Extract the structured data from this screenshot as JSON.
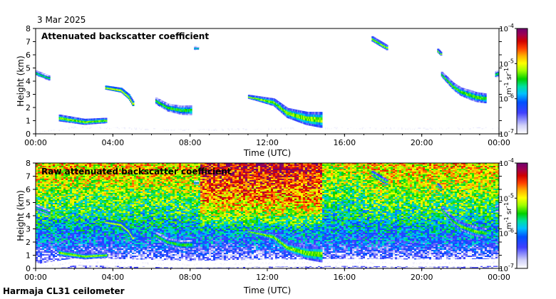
{
  "date_label": "3 Mar 2025",
  "caption": "Harmaja CL31 ceilometer",
  "chart_data": [
    {
      "type": "heatmap",
      "title": "Attenuated backscatter coefficient",
      "xlabel": "Time (UTC)",
      "ylabel": "Height (km)",
      "xticks": [
        "00:00",
        "04:00",
        "08:00",
        "12:00",
        "16:00",
        "20:00",
        "00:00"
      ],
      "xlim_hours": [
        0,
        24
      ],
      "ylim": [
        0,
        8
      ],
      "yticks": [
        0,
        1,
        2,
        3,
        4,
        5,
        6,
        7,
        8
      ],
      "colorbar": {
        "ticks": [
          -7,
          -6,
          -5,
          -4
        ],
        "tick_labels": [
          "10",
          "10",
          "10",
          "10"
        ],
        "tick_exponents": [
          "-7",
          "-6",
          "-5",
          "-4"
        ],
        "unit": "m",
        "unit_exp1": "-1",
        "unit_mid": " sr",
        "unit_exp2": "-1",
        "scale": "log10",
        "colors": [
          "#ffffff",
          "#e0e0f8",
          "#5a5aff",
          "#0000c0",
          "#00a0ff",
          "#00e0c0",
          "#00e000",
          "#a0ff00",
          "#ffff00",
          "#ffb000",
          "#ff5000",
          "#e00000",
          "#b00040",
          "#800080"
        ]
      },
      "layers": [
        {
          "name": "surface-aerosol",
          "t": [
            [
              0,
              0.05
            ],
            [
              2,
              0.5
            ],
            [
              4,
              0.45
            ],
            [
              8,
              0.3
            ],
            [
              12,
              0.4
            ],
            [
              16,
              0.45
            ],
            [
              20,
              0.4
            ],
            [
              24,
              0.45
            ]
          ],
          "thickness": [
            [
              0,
              0.4
            ],
            [
              24,
              0.4
            ]
          ],
          "logval": -6.8
        },
        {
          "name": "cloud-00-01h",
          "t": [
            [
              0,
              4.6
            ],
            [
              0.7,
              4.2
            ]
          ],
          "thickness": [
            [
              0,
              0.3
            ],
            [
              0.7,
              0.3
            ]
          ],
          "logval": -5.3
        },
        {
          "name": "cloud-02h",
          "t": [
            [
              1.2,
              1.2
            ],
            [
              2.5,
              0.9
            ],
            [
              3.6,
              1.0
            ]
          ],
          "thickness": [
            [
              1.2,
              0.4
            ],
            [
              3.6,
              0.3
            ]
          ],
          "logval": -5.0
        },
        {
          "name": "cloud-04-05h",
          "t": [
            [
              3.6,
              3.5
            ],
            [
              4.4,
              3.3
            ],
            [
              4.8,
              2.8
            ],
            [
              5.0,
              2.3
            ]
          ],
          "thickness": [
            [
              3.6,
              0.2
            ],
            [
              5.0,
              0.3
            ]
          ],
          "logval": -4.8
        },
        {
          "name": "cloud-06-07h",
          "t": [
            [
              6.2,
              2.5
            ],
            [
              6.8,
              2.0
            ],
            [
              7.5,
              1.8
            ],
            [
              8.0,
              1.8
            ]
          ],
          "thickness": [
            [
              6.2,
              0.4
            ],
            [
              8.0,
              0.6
            ]
          ],
          "logval": -5.2
        },
        {
          "name": "cloud-12-15h",
          "t": [
            [
              11.0,
              2.8
            ],
            [
              12.3,
              2.4
            ],
            [
              13.0,
              1.6
            ],
            [
              14.0,
              1.2
            ],
            [
              14.8,
              1.1
            ]
          ],
          "thickness": [
            [
              11.0,
              0.2
            ],
            [
              12.5,
              0.5
            ],
            [
              14.8,
              1.0
            ]
          ],
          "logval": -5.0
        },
        {
          "name": "cloud-21-23h",
          "t": [
            [
              21.0,
              4.5
            ],
            [
              21.6,
              3.6
            ],
            [
              22.0,
              3.2
            ],
            [
              22.8,
              2.8
            ],
            [
              23.3,
              2.7
            ]
          ],
          "thickness": [
            [
              21.0,
              0.3
            ],
            [
              22.5,
              0.6
            ],
            [
              23.3,
              0.6
            ]
          ],
          "logval": -5.1
        },
        {
          "name": "cloud-24h",
          "t": [
            [
              23.8,
              4.5
            ],
            [
              24,
              4.6
            ]
          ],
          "thickness": [
            [
              23.8,
              0.4
            ],
            [
              24,
              0.4
            ]
          ],
          "logval": -5.3
        },
        {
          "name": "aloft-07h",
          "t": [
            [
              8.2,
              6.5
            ],
            [
              8.4,
              6.5
            ]
          ],
          "thickness": [
            [
              8.2,
              0.2
            ],
            [
              8.4,
              0.2
            ]
          ],
          "logval": -5.4
        },
        {
          "name": "aloft-18h",
          "t": [
            [
              17.4,
              7.2
            ],
            [
              18.2,
              6.5
            ]
          ],
          "thickness": [
            [
              17.4,
              0.3
            ],
            [
              18.2,
              0.3
            ]
          ],
          "logval": -5.0
        },
        {
          "name": "aloft-20h",
          "t": [
            [
              20.8,
              6.3
            ],
            [
              21.0,
              6.0
            ]
          ],
          "thickness": [
            [
              20.8,
              0.2
            ],
            [
              21.0,
              0.2
            ]
          ],
          "logval": -5.0
        }
      ]
    },
    {
      "type": "heatmap",
      "title": "Raw attenuated backscatter coefficient",
      "xlabel": "Time (UTC)",
      "ylabel": "Height (km)",
      "xticks": [
        "00:00",
        "04:00",
        "08:00",
        "12:00",
        "16:00",
        "20:00",
        "00:00"
      ],
      "xlim_hours": [
        0,
        24
      ],
      "ylim": [
        0,
        8
      ],
      "yticks": [
        0,
        1,
        2,
        3,
        4,
        5,
        6,
        7,
        8
      ],
      "colorbar": {
        "ticks": [
          -7,
          -6,
          -5,
          -4
        ],
        "tick_labels": [
          "10",
          "10",
          "10",
          "10"
        ],
        "tick_exponents": [
          "-7",
          "-6",
          "-5",
          "-4"
        ],
        "unit": "m",
        "unit_exp1": "-1",
        "unit_mid": " sr",
        "unit_exp2": "-1",
        "scale": "log10"
      },
      "noise_gradient_note": "noise increases with height; red aloft 09-14h",
      "noise_profile": [
        {
          "h": 0,
          "logval": -6.9
        },
        {
          "h": 1,
          "logval": -6.6
        },
        {
          "h": 2,
          "logval": -6.1
        },
        {
          "h": 3,
          "logval": -5.9
        },
        {
          "h": 4,
          "logval": -5.6
        },
        {
          "h": 5,
          "logval": -5.4
        },
        {
          "h": 6,
          "logval": -5.2
        },
        {
          "h": 7,
          "logval": -5.0
        },
        {
          "h": 8,
          "logval": -4.9
        }
      ]
    }
  ]
}
